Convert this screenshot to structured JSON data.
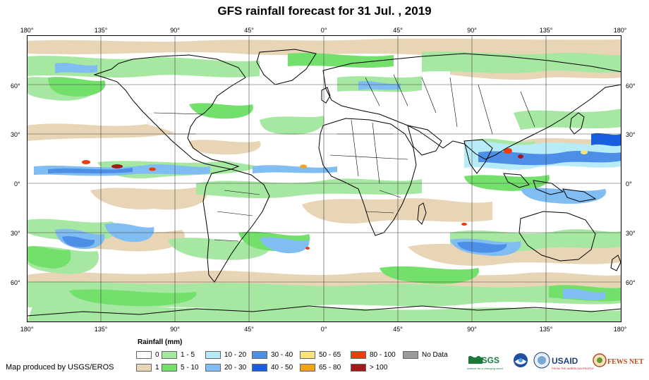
{
  "title": "GFS rainfall forecast for 31 Jul. , 2019",
  "longitude_labels": [
    "180°",
    "135°",
    "90°",
    "45°",
    "0°",
    "45°",
    "90°",
    "135°",
    "180°"
  ],
  "latitude_labels": [
    "60°",
    "30°",
    "0°",
    "30°",
    "60°"
  ],
  "legend": {
    "title": "Rainfall (mm)",
    "items": [
      {
        "label": "0",
        "color": "#ffffff"
      },
      {
        "label": "1",
        "color": "#e8d5b5"
      },
      {
        "label": "1 - 5",
        "color": "#a6e8a1"
      },
      {
        "label": "5 - 10",
        "color": "#73e06b"
      },
      {
        "label": "10 - 20",
        "color": "#b7ebf7"
      },
      {
        "label": "20 - 30",
        "color": "#7fbdf2"
      },
      {
        "label": "30 - 40",
        "color": "#4d8fe6"
      },
      {
        "label": "40 - 50",
        "color": "#1a5ee0"
      },
      {
        "label": "50 - 65",
        "color": "#fbe37c"
      },
      {
        "label": "65 - 80",
        "color": "#f5a21b"
      },
      {
        "label": "80 - 100",
        "color": "#f23b0c"
      },
      {
        "label": "> 100",
        "color": "#a11a1a"
      },
      {
        "label": "No Data",
        "color": "#9a9a9a"
      }
    ]
  },
  "credit": "Map produced by USGS/EROS",
  "logos": {
    "usgs": "USGS",
    "usgs_tagline": "science for a changing world",
    "usaid": "USAID",
    "usaid_tagline": "FROM THE AMERICAN PEOPLE",
    "fewsnet": "FEWS NET"
  }
}
